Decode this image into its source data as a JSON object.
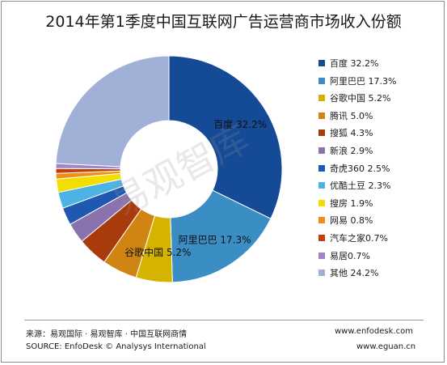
{
  "chart_data": {
    "type": "pie",
    "title": "2014年第1季度中国互联网广告运营商市场收入份额",
    "unit": "%",
    "series": [
      {
        "values": [
          {
            "label": "百度",
            "value": 32.2,
            "color": "#144a96"
          },
          {
            "label": "阿里巴巴",
            "value": 17.3,
            "color": "#3b8ec4"
          },
          {
            "label": "谷歌中国",
            "value": 5.2,
            "color": "#d4b400"
          },
          {
            "label": "腾讯",
            "value": 5.0,
            "color": "#d08512"
          },
          {
            "label": "搜狐",
            "value": 4.3,
            "color": "#a83a0c"
          },
          {
            "label": "新浪",
            "value": 2.9,
            "color": "#8a72ae"
          },
          {
            "label": "奇虎360",
            "value": 2.5,
            "color": "#1f58b0"
          },
          {
            "label": "优酷土豆",
            "value": 2.3,
            "color": "#4db3e4"
          },
          {
            "label": "搜房",
            "value": 1.9,
            "color": "#f2de00"
          },
          {
            "label": "网易",
            "value": 0.8,
            "color": "#ef8e18"
          },
          {
            "label": "汽车之家",
            "value": 0.7,
            "color": "#c0400c"
          },
          {
            "label": "易居",
            "value": 0.7,
            "color": "#9f86c6"
          },
          {
            "label": "其他",
            "value": 24.2,
            "color": "#a0b0d6"
          }
        ]
      }
    ],
    "legend_labels": [
      "百度 32.2%",
      "阿里巴巴 17.3%",
      "谷歌中国 5.2%",
      "腾讯 5.0%",
      "搜狐 4.3%",
      "新浪 2.9%",
      "奇虎360 2.5%",
      "优酷土豆 2.3%",
      "搜房 1.9%",
      "网易 0.8%",
      "汽车之家0.7%",
      "易居0.7%",
      "其他 24.2%"
    ],
    "data_labels": [
      {
        "index": 0,
        "text": "百度 32.2%"
      },
      {
        "index": 1,
        "text": "阿里巴巴 17.3%"
      },
      {
        "index": 2,
        "text": "谷歌中国 5.2%"
      }
    ],
    "legend_position": "right",
    "grid": false
  },
  "watermark": "易观智库",
  "footer": {
    "source_cn": "来源：易观国际 · 易观智库 · 中国互联网商情",
    "source_en": "SOURCE: EnfoDesk © Analysys International",
    "url1": "www.enfodesk.com",
    "url2": "www.eguan.cn"
  }
}
